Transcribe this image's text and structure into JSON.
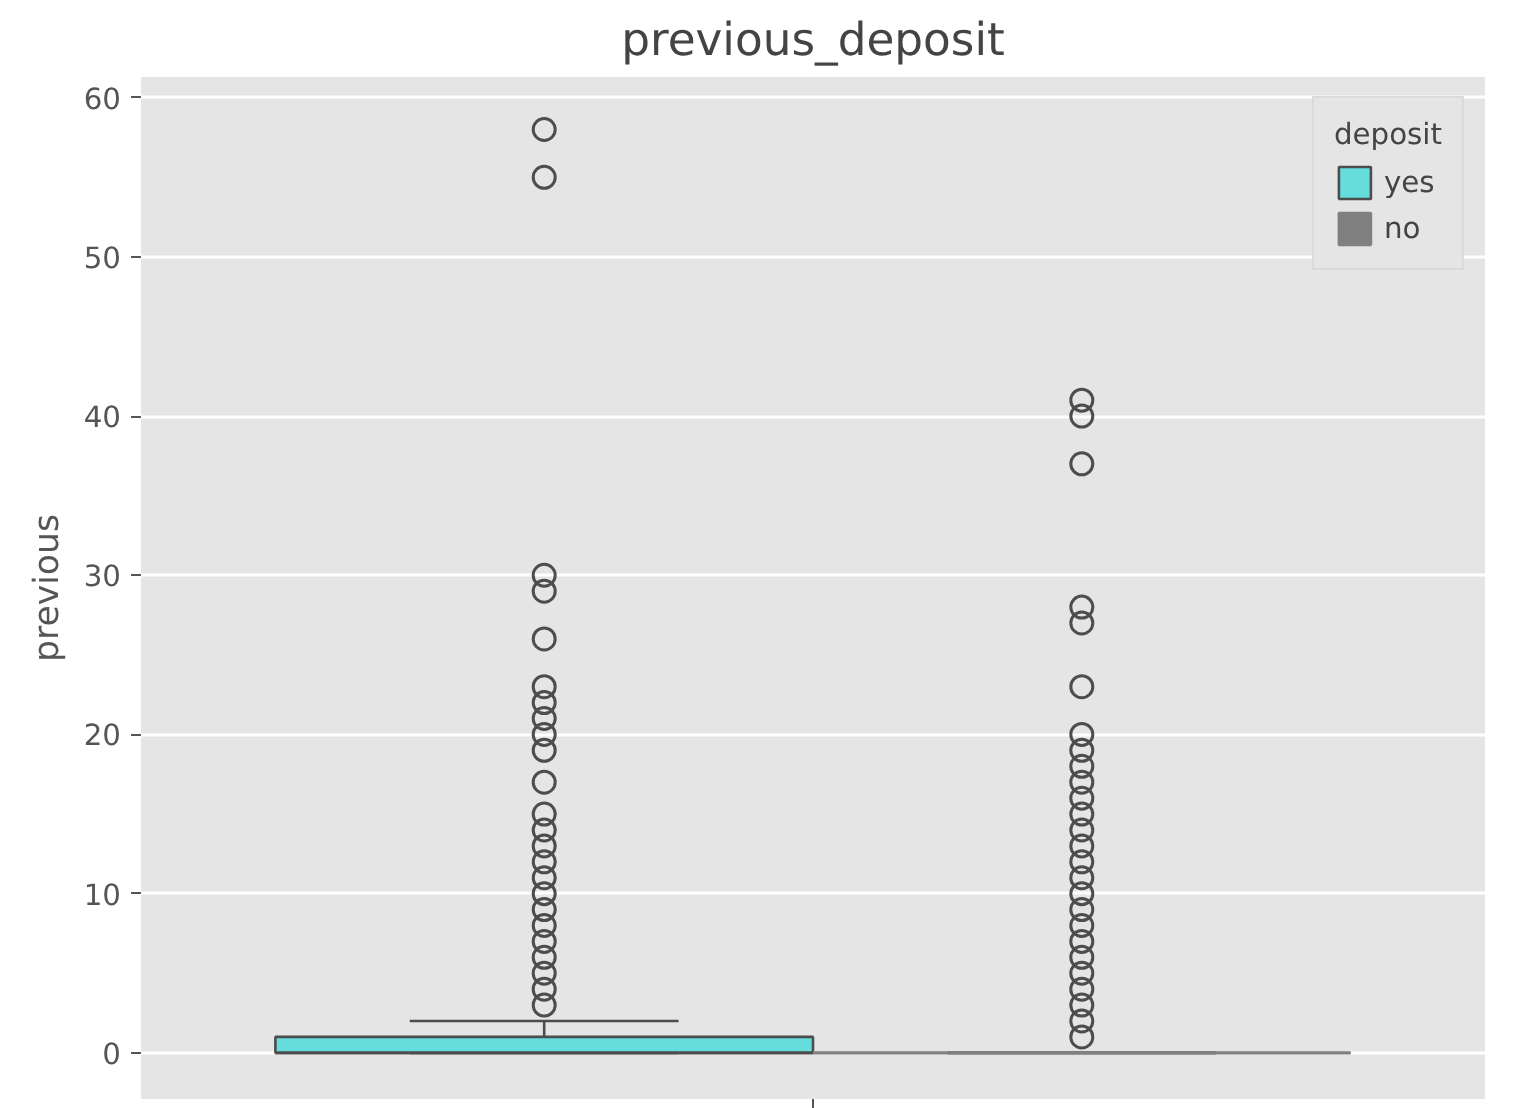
{
  "chart_data": {
    "type": "box",
    "title": "previous_deposit",
    "ylabel": "previous",
    "legend_title": "deposit",
    "categories": [
      null
    ],
    "ylim": [
      -2.9,
      61.3
    ],
    "yticks": [
      0,
      10,
      20,
      30,
      40,
      50,
      60
    ],
    "grid": "y",
    "legend": "top right",
    "series": [
      {
        "name": "yes",
        "color": "#66dddd",
        "boxes": [
          {
            "low": 0,
            "q1": 0,
            "median": 0,
            "q3": 1,
            "high": 2,
            "outliers": [
              3,
              4,
              5,
              6,
              7,
              8,
              9,
              10,
              11,
              12,
              13,
              14,
              15,
              17,
              19,
              20,
              21,
              22,
              23,
              26,
              29,
              30,
              55,
              58
            ]
          }
        ]
      },
      {
        "name": "no",
        "color": "#808080",
        "boxes": [
          {
            "low": 0,
            "q1": 0,
            "median": 0,
            "q3": 0,
            "high": 0,
            "outliers": [
              1,
              2,
              3,
              4,
              5,
              6,
              7,
              8,
              9,
              10,
              11,
              12,
              13,
              14,
              15,
              16,
              17,
              18,
              19,
              20,
              23,
              27,
              28,
              37,
              40,
              41
            ]
          }
        ]
      }
    ]
  }
}
